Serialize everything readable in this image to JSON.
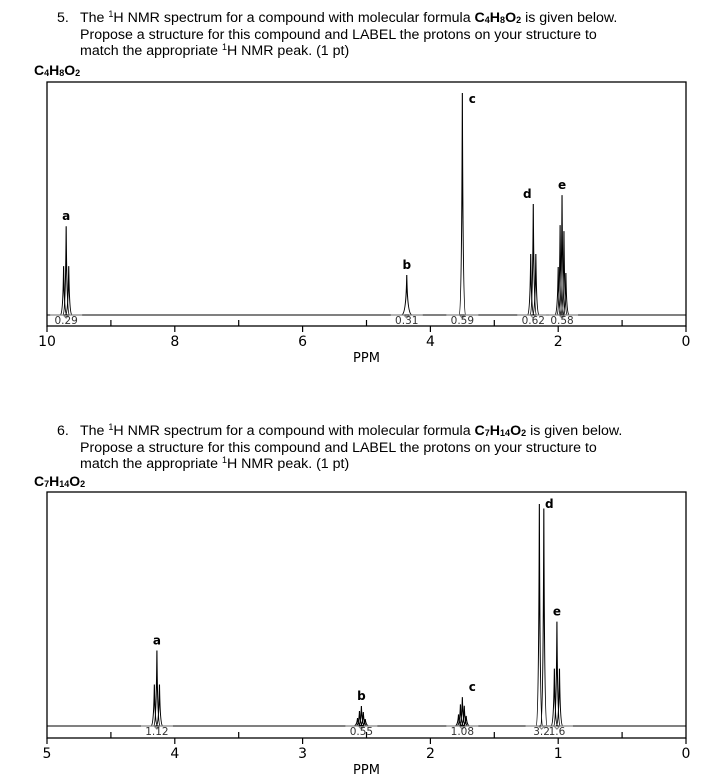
{
  "questions": [
    {
      "number": "5.",
      "line1_pre": "The ",
      "sup": "1",
      "line1_mid": "H NMR spectrum for a compound with molecular formula ",
      "formula_parts": [
        "C",
        "4",
        "H",
        "8",
        "O",
        "2"
      ],
      "line1_post": " is given below.",
      "line2": "Propose a structure for this compound and LABEL the protons on your structure to",
      "line3_pre": "match the appropriate ",
      "line3_sup": "1",
      "line3_post": "H NMR peak. (1 pt)"
    },
    {
      "number": "6.",
      "line1_pre": "The ",
      "sup": "1",
      "line1_mid": "H NMR spectrum for a compound with molecular formula ",
      "formula_parts": [
        "C",
        "7",
        "H",
        "14",
        "O",
        "2"
      ],
      "line1_post": " is given below.",
      "line2": "Propose a structure for this compound and LABEL the protons on your structure to",
      "line3_pre": "match the appropriate ",
      "line3_sup": "1",
      "line3_post": "H NMR peak. (1 pt)"
    }
  ],
  "chart_data": [
    {
      "type": "line",
      "title": "C4H8O2",
      "title_parts": [
        "C",
        "4",
        "H",
        "8",
        "O",
        "2"
      ],
      "xlabel": "PPM",
      "ylabel": "",
      "xlim": [
        10,
        0
      ],
      "x_ticks": [
        10,
        8,
        6,
        4,
        2,
        0
      ],
      "x_minor_ticks": [
        9,
        7,
        5,
        3,
        1
      ],
      "grid": false,
      "peaks": [
        {
          "label": "a",
          "ppm": 9.7,
          "multiplicity": "triplet",
          "relative_height": 0.4,
          "integration": "0.29"
        },
        {
          "label": "b",
          "ppm": 4.37,
          "multiplicity": "singlet (broad)",
          "relative_height": 0.18,
          "integration": "0.31"
        },
        {
          "label": "c",
          "ppm": 3.5,
          "multiplicity": "singlet",
          "relative_height": 1.0,
          "integration": "0.59"
        },
        {
          "label": "d",
          "ppm": 2.39,
          "multiplicity": "triplet",
          "relative_height": 0.5,
          "integration": "0.62"
        },
        {
          "label": "e",
          "ppm": 1.94,
          "multiplicity": "multiplet",
          "relative_height": 0.54,
          "integration": "0.58"
        }
      ]
    },
    {
      "type": "line",
      "title": "C7H14O2",
      "title_parts": [
        "C",
        "7",
        "H",
        "14",
        "O",
        "2"
      ],
      "xlabel": "PPM",
      "ylabel": "",
      "xlim": [
        5,
        0
      ],
      "x_ticks": [
        5,
        4,
        3,
        2,
        1,
        0
      ],
      "x_minor_ticks": [
        4.5,
        3.5,
        2.5,
        1.5,
        0.5
      ],
      "grid": false,
      "peaks": [
        {
          "label": "a",
          "ppm": 4.14,
          "multiplicity": "triplet",
          "relative_height": 0.34,
          "integration": "1.12"
        },
        {
          "label": "b",
          "ppm": 2.54,
          "multiplicity": "multiplet",
          "relative_height": 0.09,
          "integration": "0.55"
        },
        {
          "label": "c",
          "ppm": 1.75,
          "multiplicity": "multiplet",
          "relative_height": 0.13,
          "integration": "1.08"
        },
        {
          "label": "d",
          "ppm": 1.13,
          "multiplicity": "doublet",
          "relative_height": 1.0,
          "integration": "3.2"
        },
        {
          "label": "e",
          "ppm": 1.01,
          "multiplicity": "triplet",
          "relative_height": 0.47,
          "integration": "1.6"
        }
      ]
    }
  ]
}
